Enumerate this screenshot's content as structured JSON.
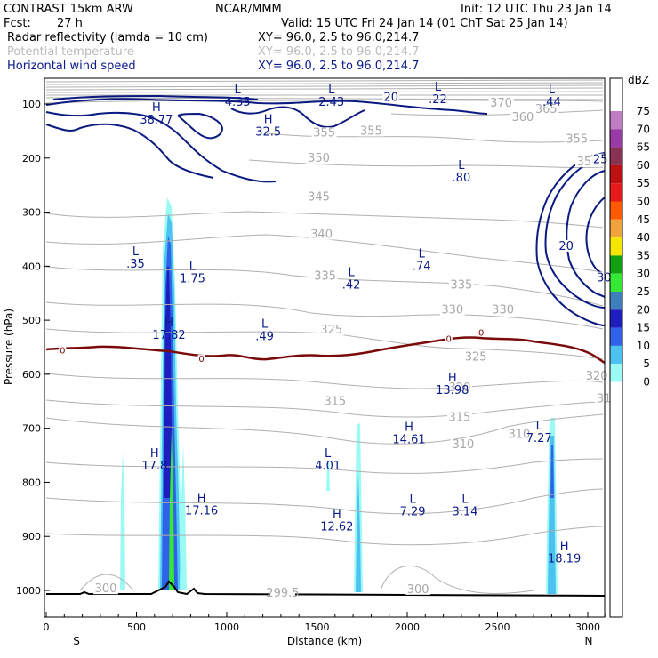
{
  "header": {
    "model": "CONTRAST 15km ARW",
    "center": "NCAR/MMM",
    "init": "Init: 12 UTC Thu 23 Jan 14",
    "fcst_label": "Fcst:",
    "fcst_value": "27 h",
    "valid": "Valid: 15 UTC Fri 24 Jan 14 (01 ChT Sat 25 Jan 14)",
    "fields": [
      {
        "name": "Radar reflectivity (lamda = 10 cm)",
        "xy": "XY=  96.0,  2.5 to  96.0,214.7"
      },
      {
        "name": "Potential temperature",
        "xy": "XY=  96.0,  2.5 to  96.0,214.7"
      },
      {
        "name": "Horizontal wind speed",
        "xy": "XY=  96.0,  2.5 to  96.0,214.7"
      }
    ]
  },
  "colors": {
    "theta": "#b0b0b0",
    "wind": "#0a1a80",
    "zero_line": "#7a0a0a",
    "ground": "#000000"
  },
  "chart_data": {
    "type": "cross-section",
    "title": "Radar reflectivity, potential temperature and horizontal wind speed cross-section",
    "xlabel": "Distance (km)",
    "ylabel": "Pressure (hPa)",
    "x_ticks": [
      0,
      500,
      1000,
      1500,
      2000,
      2500,
      3000
    ],
    "y_ticks": [
      100,
      200,
      300,
      400,
      500,
      600,
      700,
      800,
      900,
      1000
    ],
    "xlim": [
      0,
      3200
    ],
    "ylim": [
      1050,
      50
    ],
    "x_end_labels": {
      "left": "S",
      "right": "N"
    },
    "colorbar": {
      "unit": "dBZ",
      "levels": [
        0,
        5,
        10,
        15,
        20,
        25,
        30,
        35,
        40,
        45,
        50,
        55,
        60,
        65,
        70,
        75
      ],
      "colors": [
        "#ffffff",
        "#9bfaf4",
        "#4cc2f2",
        "#2f62e8",
        "#1e1ebf",
        "#3d7fbd",
        "#34e834",
        "#10a010",
        "#f5e600",
        "#f2a43c",
        "#ff5a00",
        "#e61a1a",
        "#bd1010",
        "#8a3252",
        "#9a3aa6",
        "#c07cc4"
      ]
    },
    "theta_labels": [
      {
        "text": "370",
        "x": 2520,
        "p": 103
      },
      {
        "text": "365",
        "x": 2770,
        "p": 115
      },
      {
        "text": "360",
        "x": 2640,
        "p": 130
      },
      {
        "text": "355",
        "x": 1540,
        "p": 158
      },
      {
        "text": "355",
        "x": 1800,
        "p": 155
      },
      {
        "text": "355",
        "x": 2940,
        "p": 170
      },
      {
        "text": "350",
        "x": 1510,
        "p": 205
      },
      {
        "text": "350",
        "x": 3000,
        "p": 212
      },
      {
        "text": "345",
        "x": 1510,
        "p": 277
      },
      {
        "text": "340",
        "x": 1525,
        "p": 346
      },
      {
        "text": "335",
        "x": 1545,
        "p": 423
      },
      {
        "text": "335",
        "x": 2300,
        "p": 440
      },
      {
        "text": "330",
        "x": 2250,
        "p": 486
      },
      {
        "text": "330",
        "x": 2530,
        "p": 486
      },
      {
        "text": "325",
        "x": 1580,
        "p": 523
      },
      {
        "text": "325",
        "x": 2380,
        "p": 573
      },
      {
        "text": "320",
        "x": 2290,
        "p": 630
      },
      {
        "text": "320",
        "x": 3050,
        "p": 608
      },
      {
        "text": "315",
        "x": 1600,
        "p": 655
      },
      {
        "text": "315",
        "x": 2290,
        "p": 685
      },
      {
        "text": "315",
        "x": 3110,
        "p": 650
      },
      {
        "text": "310",
        "x": 2310,
        "p": 735
      },
      {
        "text": "310",
        "x": 2620,
        "p": 716
      },
      {
        "text": "300",
        "x": 330,
        "p": 1002
      },
      {
        "text": "299.5",
        "x": 1310,
        "p": 1010
      },
      {
        "text": "300",
        "x": 2060,
        "p": 1003
      }
    ],
    "wind_labels": [
      {
        "text": "20",
        "x": 1910,
        "p": 93
      },
      {
        "text": "20",
        "x": 2880,
        "p": 368
      },
      {
        "text": "25",
        "x": 3070,
        "p": 208
      },
      {
        "text": "30",
        "x": 3090,
        "p": 427
      }
    ],
    "zero_labels": [
      {
        "text": "0",
        "x": 90,
        "p": 558
      },
      {
        "text": "0",
        "x": 860,
        "p": 574
      },
      {
        "text": "0",
        "x": 2230,
        "p": 537
      },
      {
        "text": "0",
        "x": 2410,
        "p": 525
      }
    ],
    "extrema": [
      {
        "type": "L",
        "value": "4.35",
        "x": 1060,
        "p": 80
      },
      {
        "type": "L",
        "value": "2.43",
        "x": 1580,
        "p": 80
      },
      {
        "type": "L",
        "value": ".22",
        "x": 2170,
        "p": 75
      },
      {
        "type": "L",
        "value": ".44",
        "x": 2800,
        "p": 80
      },
      {
        "type": "H",
        "value": "38.77",
        "x": 610,
        "p": 113
      },
      {
        "type": "H",
        "value": "32.5",
        "x": 1230,
        "p": 135
      },
      {
        "type": "L",
        "value": ".80",
        "x": 2300,
        "p": 220
      },
      {
        "type": "L",
        "value": ".35",
        "x": 495,
        "p": 380
      },
      {
        "type": "L",
        "value": "1.75",
        "x": 810,
        "p": 407
      },
      {
        "type": "L",
        "value": ".74",
        "x": 2080,
        "p": 384
      },
      {
        "type": "L",
        "value": ".42",
        "x": 1690,
        "p": 418
      },
      {
        "type": "H",
        "value": "17.82",
        "x": 680,
        "p": 511
      },
      {
        "type": "L",
        "value": ".49",
        "x": 1210,
        "p": 514
      },
      {
        "type": "H",
        "value": "13.98",
        "x": 2250,
        "p": 613
      },
      {
        "type": "H",
        "value": "14.61",
        "x": 2010,
        "p": 705
      },
      {
        "type": "L",
        "value": "7.27",
        "x": 2730,
        "p": 702
      },
      {
        "type": "H",
        "value": "17.8",
        "x": 600,
        "p": 753
      },
      {
        "type": "L",
        "value": "4.01",
        "x": 1560,
        "p": 753
      },
      {
        "type": "H",
        "value": "17.16",
        "x": 860,
        "p": 836
      },
      {
        "type": "L",
        "value": "7.29",
        "x": 2030,
        "p": 838
      },
      {
        "type": "L",
        "value": "3.14",
        "x": 2320,
        "p": 838
      },
      {
        "type": "H",
        "value": "12.62",
        "x": 1610,
        "p": 866
      },
      {
        "type": "H",
        "value": "18.19",
        "x": 2870,
        "p": 925
      }
    ]
  }
}
